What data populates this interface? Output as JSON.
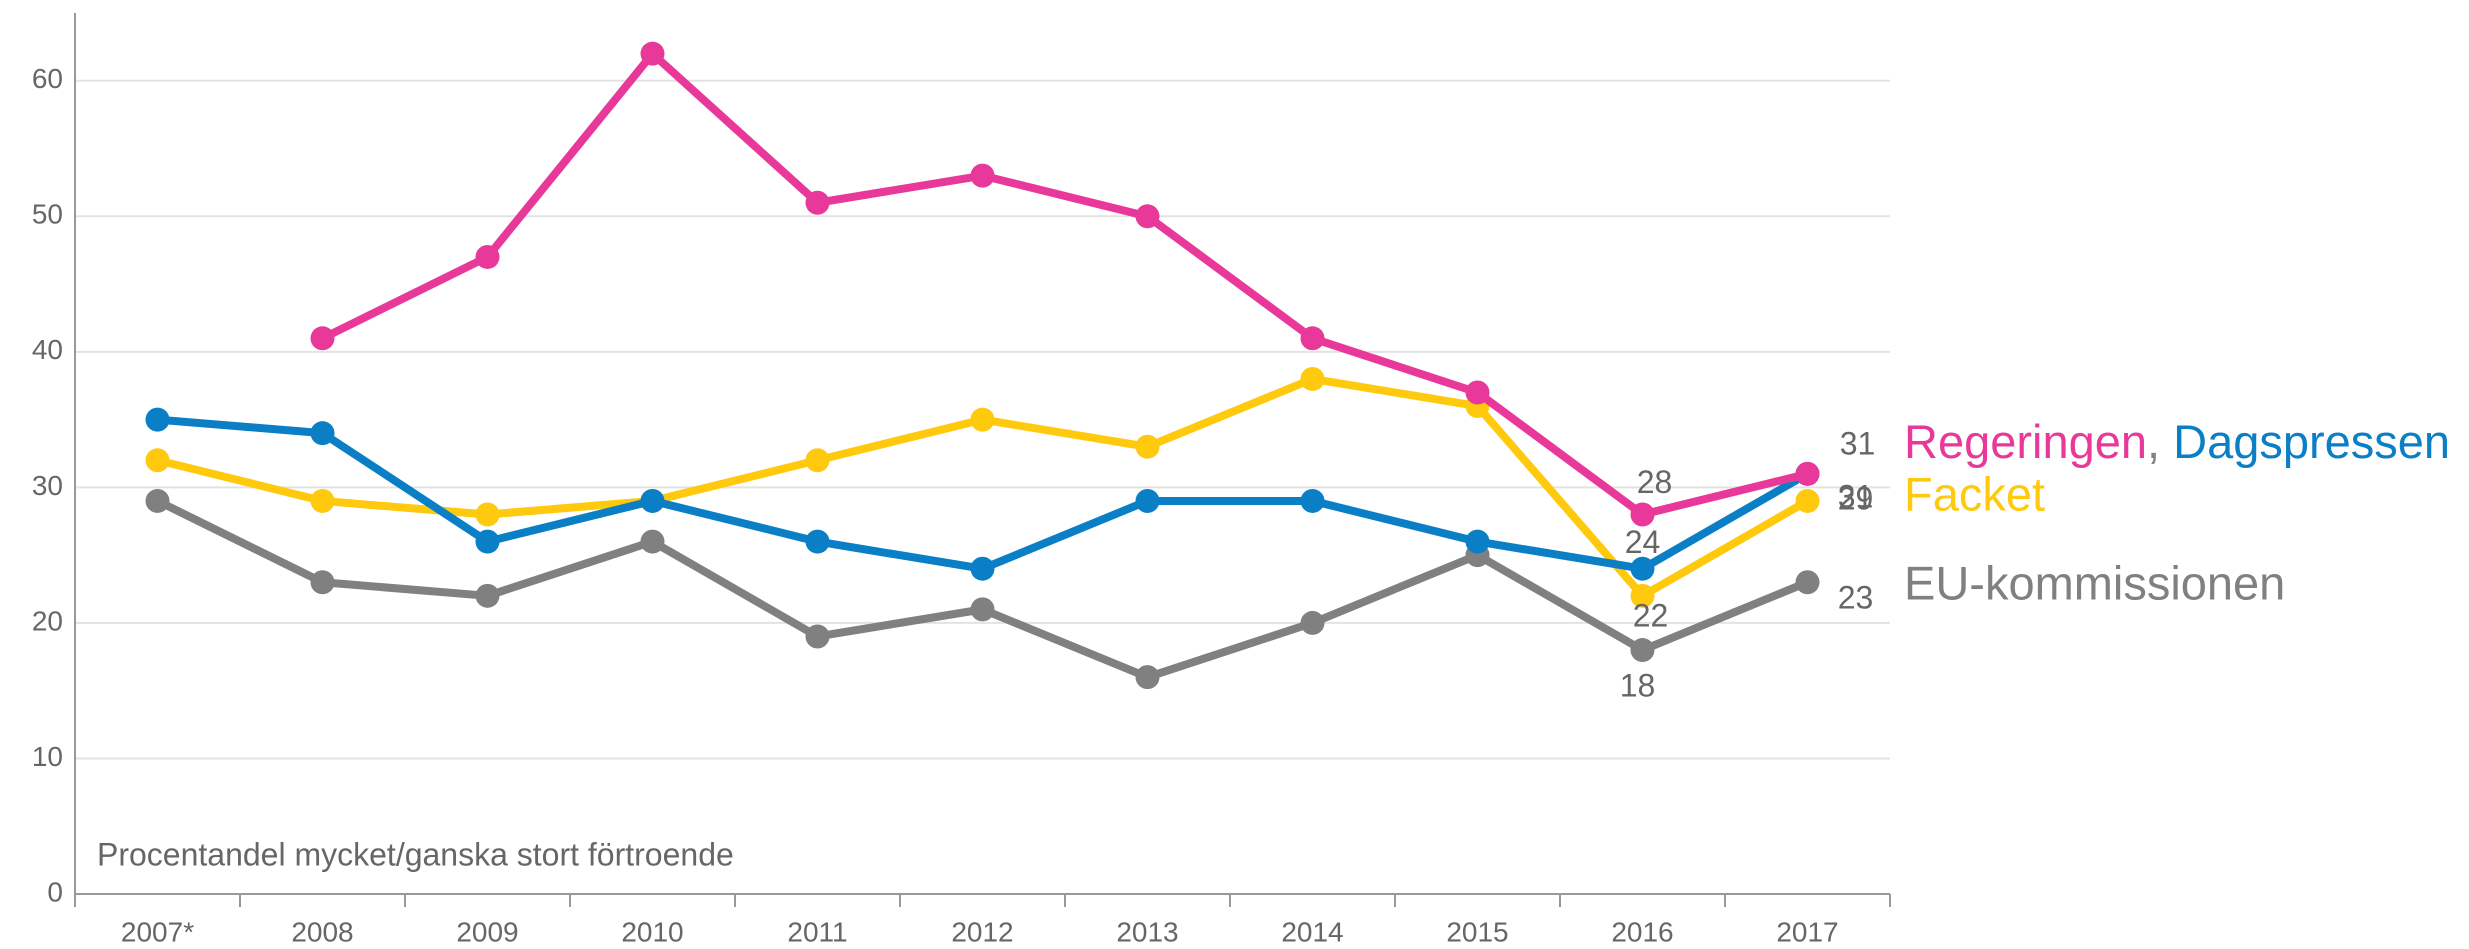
{
  "chart_data": {
    "type": "line",
    "annotation": "Procentandel mycket/ganska stort förtroende",
    "categories": [
      "2007*",
      "2008",
      "2009",
      "2010",
      "2011",
      "2012",
      "2013",
      "2014",
      "2015",
      "2016",
      "2017"
    ],
    "series": [
      {
        "name": "Regeringen",
        "color": "#e8399a",
        "values": [
          null,
          41,
          47,
          62,
          51,
          53,
          50,
          41,
          37,
          28,
          31
        ]
      },
      {
        "name": "Dagspressen",
        "color": "#0a7fc5",
        "values": [
          35,
          34,
          26,
          29,
          26,
          24,
          29,
          29,
          26,
          24,
          31
        ]
      },
      {
        "name": "Facket",
        "color": "#ffc90e",
        "values": [
          32,
          29,
          28,
          29,
          32,
          35,
          33,
          38,
          36,
          22,
          29
        ]
      },
      {
        "name": "EU-kommissionen",
        "color": "#808080",
        "values": [
          29,
          23,
          22,
          26,
          19,
          21,
          16,
          20,
          25,
          18,
          23
        ]
      }
    ],
    "legend_separator": ",",
    "ylim": [
      0,
      65
    ],
    "yticks": [
      0,
      10,
      20,
      30,
      40,
      50,
      60
    ],
    "grid": true
  }
}
